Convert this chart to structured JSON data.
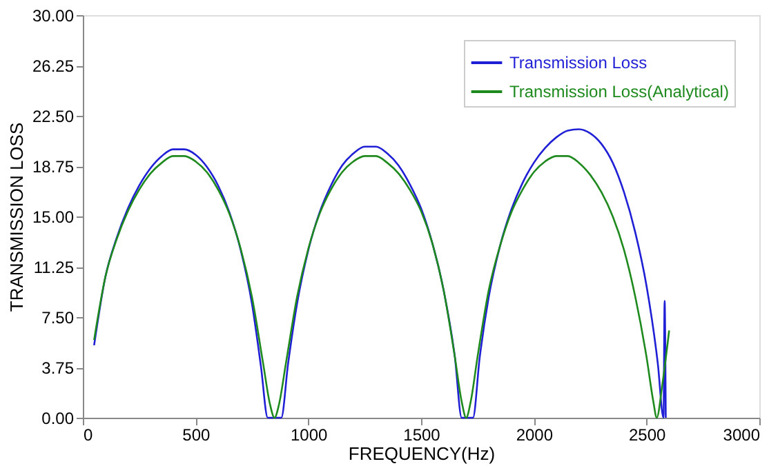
{
  "chart_data": {
    "type": "line",
    "xlabel": "FREQUENCY(Hz)",
    "ylabel": "TRANSMISSION LOSS",
    "xlim": [
      0,
      3000
    ],
    "xticks": [
      0,
      500,
      1000,
      1500,
      2000,
      2500,
      3000
    ],
    "ylim": [
      0,
      30
    ],
    "yticks": [
      {
        "value": 0,
        "label": "0.00"
      },
      {
        "value": 3.75,
        "label": "3.75"
      },
      {
        "value": 7.5,
        "label": "7.50"
      },
      {
        "value": 11.25,
        "label": "11.25"
      },
      {
        "value": 15,
        "label": "15.00"
      },
      {
        "value": 18.75,
        "label": "18.75"
      },
      {
        "value": 22.5,
        "label": "22.50"
      },
      {
        "value": 26.25,
        "label": "26.25"
      },
      {
        "value": 30,
        "label": "30.00"
      }
    ],
    "grid": false,
    "legend": "top right",
    "marker": "none",
    "line_style": "solid",
    "series": [
      {
        "name": "Transmission Loss",
        "color": "#1f1fd6",
        "x": [
          50,
          100,
          150,
          200,
          250,
          300,
          350,
          400,
          450,
          500,
          550,
          600,
          650,
          700,
          750,
          790,
          820,
          880,
          910,
          950,
          1000,
          1050,
          1100,
          1150,
          1200,
          1250,
          1300,
          1350,
          1400,
          1450,
          1500,
          1550,
          1600,
          1650,
          1680,
          1730,
          1760,
          1800,
          1850,
          1900,
          1950,
          2000,
          2050,
          2100,
          2150,
          2200,
          2250,
          2300,
          2350,
          2400,
          2450,
          2500,
          2550,
          2575,
          2580,
          2585
        ],
        "values": [
          5.4,
          10.5,
          13.4,
          15.6,
          17.3,
          18.6,
          19.5,
          20.0,
          20.0,
          19.6,
          18.7,
          17.3,
          15.3,
          12.5,
          8.5,
          3.8,
          0,
          0,
          4.0,
          8.5,
          12.5,
          15.3,
          17.3,
          18.8,
          19.7,
          20.2,
          20.2,
          19.7,
          18.8,
          17.4,
          15.6,
          13.0,
          9.5,
          4.5,
          0,
          0,
          4.5,
          9.0,
          12.8,
          15.5,
          17.5,
          19.0,
          20.1,
          20.9,
          21.4,
          21.5,
          21.2,
          20.4,
          19.0,
          16.8,
          13.8,
          9.8,
          4.0,
          0,
          8.7,
          0
        ]
      },
      {
        "name": "Transmission Loss(Analytical)",
        "color": "#1e8a1e",
        "x": [
          50,
          100,
          150,
          200,
          250,
          300,
          350,
          400,
          450,
          500,
          550,
          600,
          650,
          700,
          750,
          800,
          830,
          850,
          870,
          900,
          950,
          1000,
          1050,
          1100,
          1150,
          1200,
          1250,
          1300,
          1350,
          1400,
          1450,
          1500,
          1550,
          1600,
          1650,
          1680,
          1700,
          1720,
          1750,
          1800,
          1850,
          1900,
          1950,
          2000,
          2050,
          2100,
          2150,
          2200,
          2250,
          2300,
          2350,
          2400,
          2450,
          2500,
          2530,
          2545,
          2570,
          2600
        ],
        "values": [
          5.8,
          10.5,
          13.3,
          15.4,
          17.0,
          18.2,
          19.0,
          19.5,
          19.5,
          19.1,
          18.3,
          17.0,
          15.2,
          12.6,
          9.0,
          4.0,
          1.0,
          0,
          1.0,
          4.0,
          9.0,
          12.6,
          15.2,
          17.0,
          18.3,
          19.1,
          19.5,
          19.5,
          19.0,
          18.2,
          17.0,
          15.4,
          13.0,
          9.5,
          4.5,
          1.2,
          0,
          1.2,
          4.5,
          9.5,
          12.8,
          15.3,
          17.0,
          18.3,
          19.1,
          19.5,
          19.5,
          19.0,
          18.1,
          16.8,
          15.0,
          12.5,
          9.0,
          4.5,
          1.2,
          0,
          2.5,
          6.5
        ]
      }
    ]
  }
}
